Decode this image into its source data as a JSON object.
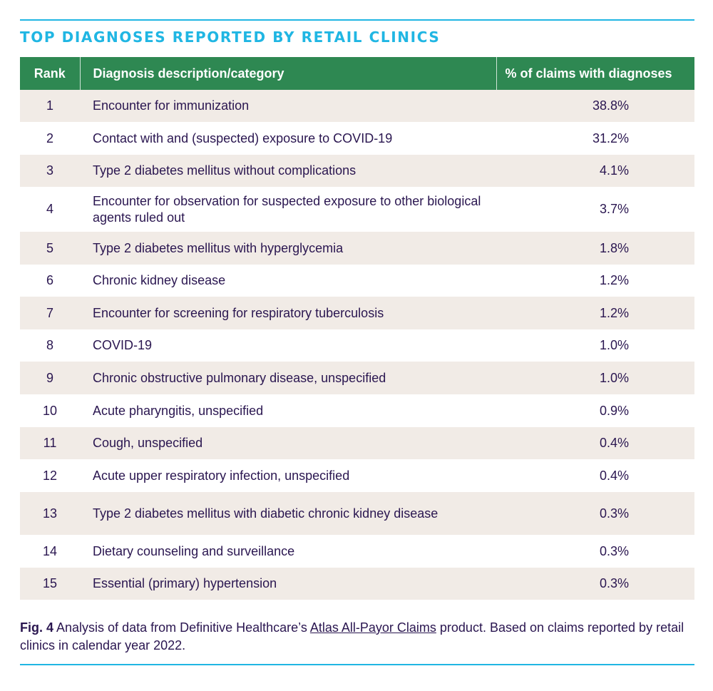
{
  "title": "TOP DIAGNOSES REPORTED BY RETAIL CLINICS",
  "columns": [
    "Rank",
    "Diagnosis description/category",
    "% of claims with diagnoses"
  ],
  "rows": [
    {
      "rank": "1",
      "description": "Encounter for immunization",
      "percent": "38.8%"
    },
    {
      "rank": "2",
      "description": "Contact with and (suspected) exposure to COVID-19",
      "percent": "31.2%"
    },
    {
      "rank": "3",
      "description": "Type 2 diabetes mellitus without complications",
      "percent": "4.1%"
    },
    {
      "rank": "4",
      "description": "Encounter for observation for suspected exposure to other biological agents ruled out",
      "percent": "3.7%"
    },
    {
      "rank": "5",
      "description": "Type 2 diabetes mellitus with hyperglycemia",
      "percent": "1.8%"
    },
    {
      "rank": "6",
      "description": "Chronic kidney disease",
      "percent": "1.2%"
    },
    {
      "rank": "7",
      "description": "Encounter for screening for respiratory tuberculosis",
      "percent": "1.2%"
    },
    {
      "rank": "8",
      "description": "COVID-19",
      "percent": "1.0%"
    },
    {
      "rank": "9",
      "description": "Chronic obstructive pulmonary disease, unspecified",
      "percent": "1.0%"
    },
    {
      "rank": "10",
      "description": "Acute pharyngitis, unspecified",
      "percent": "0.9%"
    },
    {
      "rank": "11",
      "description": "Cough, unspecified",
      "percent": "0.4%"
    },
    {
      "rank": "12",
      "description": "Acute upper respiratory infection, unspecified",
      "percent": "0.4%"
    },
    {
      "rank": "13",
      "description": "Type 2 diabetes mellitus with diabetic chronic kidney disease",
      "percent": "0.3%"
    },
    {
      "rank": "14",
      "description": "Dietary counseling and surveillance",
      "percent": "0.3%"
    },
    {
      "rank": "15",
      "description": "Essential (primary) hypertension",
      "percent": "0.3%"
    }
  ],
  "caption": {
    "label": "Fig. 4",
    "text_before": " Analysis of data from Definitive Healthcare’s ",
    "link_text": "Atlas All-Payor Claims",
    "text_after": " product. Based on claims reported by retail clinics in calendar year 2022."
  },
  "colors": {
    "accent": "#20b6e3",
    "header_bg": "#2e8852",
    "row_shade": "#f1ebe6",
    "text": "#2a1650"
  }
}
